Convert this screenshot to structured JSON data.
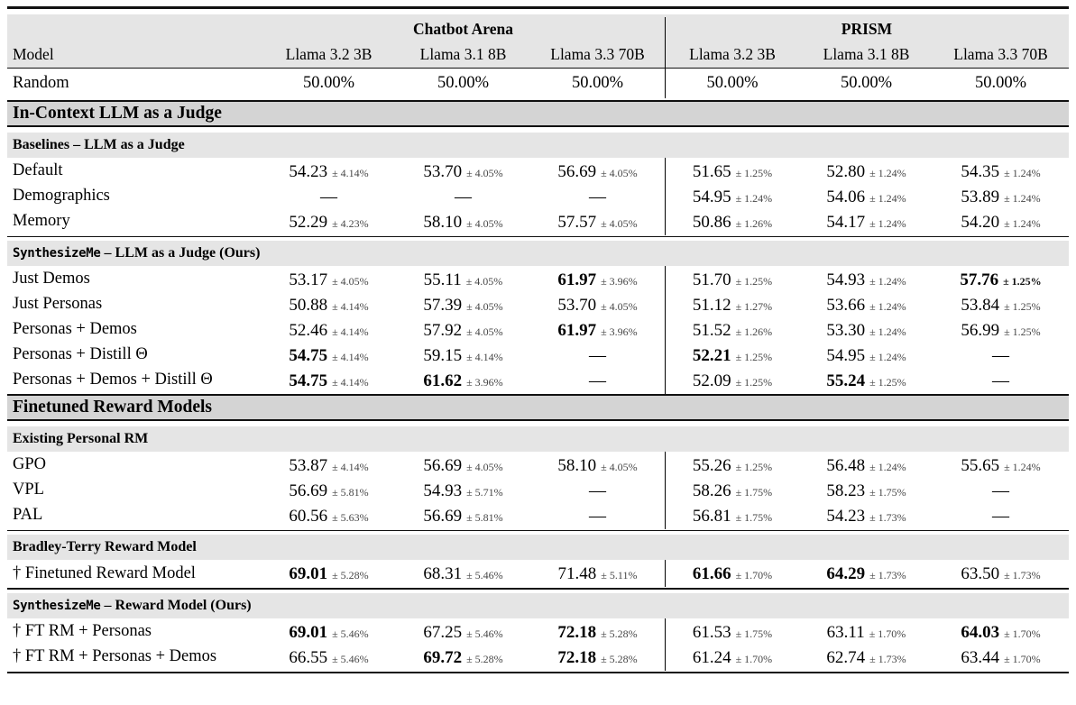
{
  "table": {
    "colors": {
      "section_band": "#d4d4d4",
      "subsection_band": "#e5e5e5",
      "header_band": "#e5e5e5",
      "rule": "#111111",
      "stderr_text": "#464646"
    },
    "group_headers": [
      {
        "label": "Chatbot Arena"
      },
      {
        "label": "PRISM"
      }
    ],
    "column_headers": [
      "Model",
      "Llama 3.2 3B",
      "Llama 3.1 8B",
      "Llama 3.3 70B",
      "Llama 3.2 3B",
      "Llama 3.1 8B",
      "Llama 3.3 70B"
    ],
    "random_row": {
      "label": "Random",
      "values": [
        "50.00%",
        "50.00%",
        "50.00%",
        "50.00%",
        "50.00%",
        "50.00%"
      ]
    },
    "sections": [
      {
        "title": "In-Context LLM as a Judge",
        "groups": [
          {
            "mono": "",
            "text": "Baselines – LLM as a Judge",
            "rows": [
              {
                "label": "Default",
                "cells": [
                  {
                    "v": "54.23",
                    "e": "± 4.14%"
                  },
                  {
                    "v": "53.70",
                    "e": "± 4.05%"
                  },
                  {
                    "v": "56.69",
                    "e": "± 4.05%"
                  },
                  {
                    "v": "51.65",
                    "e": "± 1.25%"
                  },
                  {
                    "v": "52.80",
                    "e": "± 1.24%"
                  },
                  {
                    "v": "54.35",
                    "e": "± 1.24%"
                  }
                ]
              },
              {
                "label": "Demographics",
                "cells": [
                  {
                    "v": "—"
                  },
                  {
                    "v": "—"
                  },
                  {
                    "v": "—"
                  },
                  {
                    "v": "54.95",
                    "e": "± 1.24%"
                  },
                  {
                    "v": "54.06",
                    "e": "± 1.24%"
                  },
                  {
                    "v": "53.89",
                    "e": "± 1.24%"
                  }
                ]
              },
              {
                "label": "Memory",
                "cells": [
                  {
                    "v": "52.29",
                    "e": "± 4.23%"
                  },
                  {
                    "v": "58.10",
                    "e": "± 4.05%"
                  },
                  {
                    "v": "57.57",
                    "e": "± 4.05%"
                  },
                  {
                    "v": "50.86",
                    "e": "± 1.26%"
                  },
                  {
                    "v": "54.17",
                    "e": "± 1.24%"
                  },
                  {
                    "v": "54.20",
                    "e": "± 1.24%"
                  }
                ]
              }
            ]
          },
          {
            "mono": "SynthesizeMe",
            "text": " – LLM as a Judge (Ours)",
            "rows": [
              {
                "label": "Just Demos",
                "cells": [
                  {
                    "v": "53.17",
                    "e": "± 4.05%"
                  },
                  {
                    "v": "55.11",
                    "e": "± 4.05%"
                  },
                  {
                    "v": "61.97",
                    "e": "± 3.96%",
                    "b": true
                  },
                  {
                    "v": "51.70",
                    "e": "± 1.25%"
                  },
                  {
                    "v": "54.93",
                    "e": "± 1.24%"
                  },
                  {
                    "v": "57.76",
                    "e": "± 1.25%",
                    "b": true,
                    "eb": true
                  }
                ]
              },
              {
                "label": "Just Personas",
                "cells": [
                  {
                    "v": "50.88",
                    "e": "± 4.14%"
                  },
                  {
                    "v": "57.39",
                    "e": "± 4.05%"
                  },
                  {
                    "v": "53.70",
                    "e": "± 4.05%"
                  },
                  {
                    "v": "51.12",
                    "e": "± 1.27%"
                  },
                  {
                    "v": "53.66",
                    "e": "± 1.24%"
                  },
                  {
                    "v": "53.84",
                    "e": "± 1.25%"
                  }
                ]
              },
              {
                "label": "Personas + Demos",
                "cells": [
                  {
                    "v": "52.46",
                    "e": "± 4.14%"
                  },
                  {
                    "v": "57.92",
                    "e": "± 4.05%"
                  },
                  {
                    "v": "61.97",
                    "e": "± 3.96%",
                    "b": true
                  },
                  {
                    "v": "51.52",
                    "e": "± 1.26%"
                  },
                  {
                    "v": "53.30",
                    "e": "± 1.24%"
                  },
                  {
                    "v": "56.99",
                    "e": "± 1.25%"
                  }
                ]
              },
              {
                "label": "Personas + Distill Θ",
                "cells": [
                  {
                    "v": "54.75",
                    "e": "± 4.14%",
                    "b": true
                  },
                  {
                    "v": "59.15",
                    "e": "± 4.14%"
                  },
                  {
                    "v": "—"
                  },
                  {
                    "v": "52.21",
                    "e": "± 1.25%",
                    "b": true
                  },
                  {
                    "v": "54.95",
                    "e": "± 1.24%"
                  },
                  {
                    "v": "—"
                  }
                ]
              },
              {
                "label": "Personas + Demos + Distill Θ",
                "cells": [
                  {
                    "v": "54.75",
                    "e": "± 4.14%",
                    "b": true
                  },
                  {
                    "v": "61.62",
                    "e": "± 3.96%",
                    "b": true
                  },
                  {
                    "v": "—"
                  },
                  {
                    "v": "52.09",
                    "e": "± 1.25%"
                  },
                  {
                    "v": "55.24",
                    "e": "± 1.25%",
                    "b": true
                  },
                  {
                    "v": "—"
                  }
                ]
              }
            ]
          }
        ]
      },
      {
        "title": "Finetuned Reward Models",
        "groups": [
          {
            "mono": "",
            "text": "Existing Personal RM",
            "rows": [
              {
                "label": "GPO",
                "cells": [
                  {
                    "v": "53.87",
                    "e": "± 4.14%"
                  },
                  {
                    "v": "56.69",
                    "e": "± 4.05%"
                  },
                  {
                    "v": "58.10",
                    "e": "± 4.05%"
                  },
                  {
                    "v": "55.26",
                    "e": "± 1.25%"
                  },
                  {
                    "v": "56.48",
                    "e": "± 1.24%"
                  },
                  {
                    "v": "55.65",
                    "e": "± 1.24%"
                  }
                ]
              },
              {
                "label": "VPL",
                "cells": [
                  {
                    "v": "56.69",
                    "e": "± 5.81%"
                  },
                  {
                    "v": "54.93",
                    "e": "± 5.71%"
                  },
                  {
                    "v": "—"
                  },
                  {
                    "v": "58.26",
                    "e": "± 1.75%"
                  },
                  {
                    "v": "58.23",
                    "e": "± 1.75%"
                  },
                  {
                    "v": "—"
                  }
                ]
              },
              {
                "label": "PAL",
                "cells": [
                  {
                    "v": "60.56",
                    "e": "± 5.63%"
                  },
                  {
                    "v": "56.69",
                    "e": "± 5.81%"
                  },
                  {
                    "v": "—"
                  },
                  {
                    "v": "56.81",
                    "e": "± 1.75%"
                  },
                  {
                    "v": "54.23",
                    "e": "± 1.73%"
                  },
                  {
                    "v": "—"
                  }
                ]
              }
            ]
          },
          {
            "mono": "",
            "text": "Bradley-Terry Reward Model",
            "rows": [
              {
                "label": "† Finetuned Reward Model",
                "cells": [
                  {
                    "v": "69.01",
                    "e": "± 5.28%",
                    "b": true
                  },
                  {
                    "v": "68.31",
                    "e": "± 5.46%"
                  },
                  {
                    "v": "71.48",
                    "e": "± 5.11%"
                  },
                  {
                    "v": "61.66",
                    "e": "± 1.70%",
                    "b": true
                  },
                  {
                    "v": "64.29",
                    "e": "± 1.73%",
                    "b": true
                  },
                  {
                    "v": "63.50",
                    "e": "± 1.73%"
                  }
                ]
              }
            ]
          },
          {
            "mono": "SynthesizeMe",
            "text": " – Reward Model (Ours)",
            "rows": [
              {
                "label": "† FT RM + Personas",
                "cells": [
                  {
                    "v": "69.01",
                    "e": "± 5.46%",
                    "b": true
                  },
                  {
                    "v": "67.25",
                    "e": "± 5.46%"
                  },
                  {
                    "v": "72.18",
                    "e": "± 5.28%",
                    "b": true
                  },
                  {
                    "v": "61.53",
                    "e": "± 1.75%"
                  },
                  {
                    "v": "63.11",
                    "e": "± 1.70%"
                  },
                  {
                    "v": "64.03",
                    "e": "± 1.70%",
                    "b": true
                  }
                ]
              },
              {
                "label": "† FT RM + Personas + Demos",
                "cells": [
                  {
                    "v": "66.55",
                    "e": "± 5.46%"
                  },
                  {
                    "v": "69.72",
                    "e": "± 5.28%",
                    "b": true
                  },
                  {
                    "v": "72.18",
                    "e": "± 5.28%",
                    "b": true
                  },
                  {
                    "v": "61.24",
                    "e": "± 1.70%"
                  },
                  {
                    "v": "62.74",
                    "e": "± 1.73%"
                  },
                  {
                    "v": "63.44",
                    "e": "± 1.70%"
                  }
                ]
              }
            ]
          }
        ]
      }
    ]
  }
}
